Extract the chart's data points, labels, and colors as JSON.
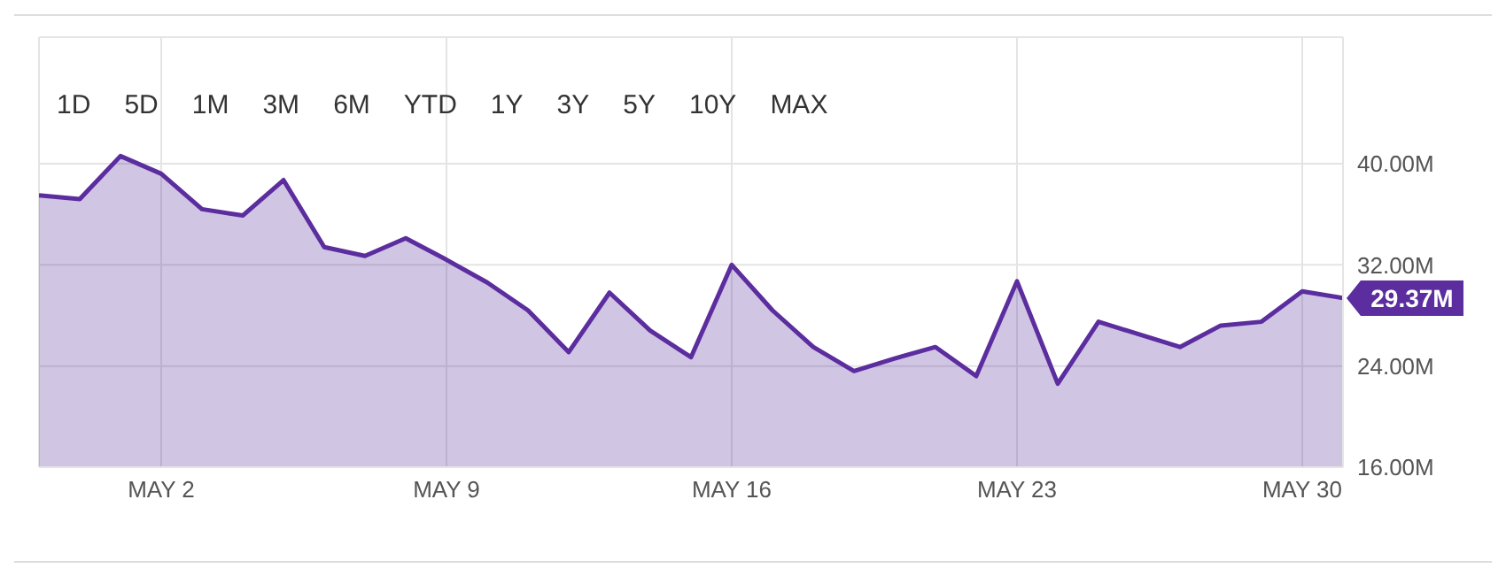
{
  "chart_data": {
    "type": "area",
    "x": [
      "--04-29",
      "--04-30",
      "--05-01",
      "--05-02",
      "--05-03",
      "--05-04",
      "--05-05",
      "--05-06",
      "--05-07",
      "--05-08",
      "--05-09",
      "--05-10",
      "--05-11",
      "--05-12",
      "--05-13",
      "--05-14",
      "--05-15",
      "--05-16",
      "--05-17",
      "--05-18",
      "--05-19",
      "--05-20",
      "--05-21",
      "--05-22",
      "--05-23",
      "--05-24",
      "--05-25",
      "--05-26",
      "--05-27",
      "--05-28",
      "--05-29",
      "--05-30",
      "--05-31"
    ],
    "series": [
      {
        "color": "#5b2d9e",
        "values": [
          37.5,
          37.2,
          40.6,
          39.2,
          36.4,
          35.9,
          38.7,
          33.4,
          32.7,
          34.1,
          32.4,
          30.6,
          28.4,
          25.1,
          29.8,
          26.8,
          24.7,
          32.0,
          28.4,
          25.5,
          23.6,
          24.6,
          25.5,
          23.2,
          30.7,
          22.6,
          27.5,
          26.5,
          25.5,
          27.2,
          27.5,
          29.9,
          29.37
        ],
        "value_labels": [
          null,
          null,
          null,
          null,
          null,
          null,
          null,
          null,
          null,
          null,
          null,
          null,
          null,
          null,
          null,
          null,
          null,
          null,
          null,
          null,
          null,
          null,
          null,
          null,
          null,
          null,
          null,
          null,
          null,
          null,
          null,
          null,
          "29.37M"
        ]
      }
    ],
    "xlim": [
      "--04-29",
      "--05-31"
    ],
    "xticks": [
      {
        "value": "--05-02",
        "label": "MAY 2"
      },
      {
        "value": "--05-09",
        "label": "MAY 9"
      },
      {
        "value": "--05-16",
        "label": "MAY 16"
      },
      {
        "value": "--05-23",
        "label": "MAY 23"
      },
      {
        "value": "--05-30",
        "label": "MAY 30"
      }
    ],
    "ylim": [
      16,
      50
    ],
    "yticks": [
      {
        "value": 16,
        "label": "16.00M"
      },
      {
        "value": 24,
        "label": "24.00M"
      },
      {
        "value": 32,
        "label": "32.00M"
      },
      {
        "value": 40,
        "label": "40.00M"
      }
    ],
    "grid": true,
    "marker": "none",
    "line_style": "solid",
    "annotations": [
      "1D",
      "5D",
      "1M",
      "3M",
      "6M",
      "YTD",
      "1Y",
      "3Y",
      "5Y",
      "10Y",
      "MAX"
    ]
  }
}
